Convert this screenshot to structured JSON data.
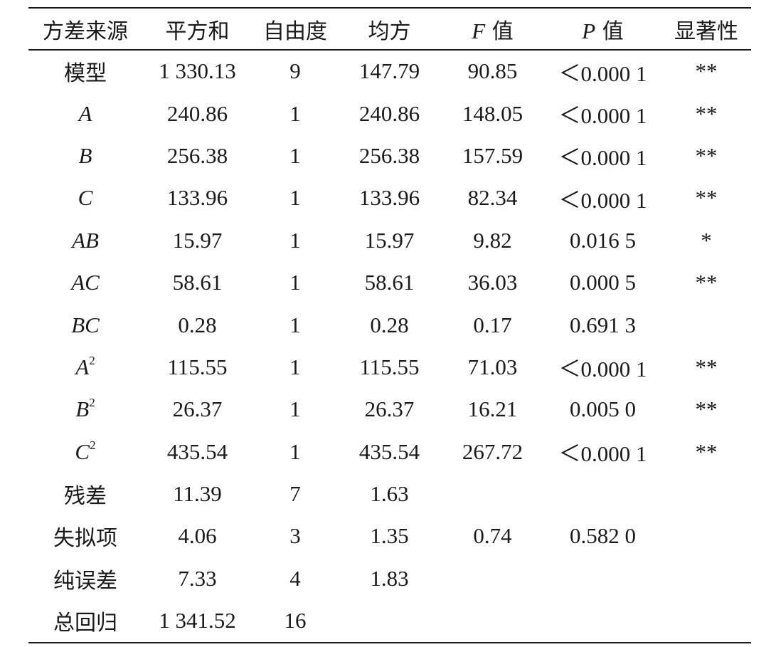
{
  "table": {
    "headers": {
      "source": "方差来源",
      "sum_of_squares": "平方和",
      "df": "自由度",
      "mean_square": "均方",
      "f_value_letter": "F",
      "f_value_suffix": "值",
      "p_value_letter": "P",
      "p_value_suffix": "值",
      "significance": "显著性"
    },
    "rows": [
      {
        "source": "模型",
        "source_italic": false,
        "source_sup": "",
        "ss": "1 330.13",
        "df": "9",
        "ms": "147.79",
        "f": "90.85",
        "p": "＜0.000 1",
        "sig": "**"
      },
      {
        "source": "A",
        "source_italic": true,
        "source_sup": "",
        "ss": "240.86",
        "df": "1",
        "ms": "240.86",
        "f": "148.05",
        "p": "＜0.000 1",
        "sig": "**"
      },
      {
        "source": "B",
        "source_italic": true,
        "source_sup": "",
        "ss": "256.38",
        "df": "1",
        "ms": "256.38",
        "f": "157.59",
        "p": "＜0.000 1",
        "sig": "**"
      },
      {
        "source": "C",
        "source_italic": true,
        "source_sup": "",
        "ss": "133.96",
        "df": "1",
        "ms": "133.96",
        "f": "82.34",
        "p": "＜0.000 1",
        "sig": "**"
      },
      {
        "source": "AB",
        "source_italic": true,
        "source_sup": "",
        "ss": "15.97",
        "df": "1",
        "ms": "15.97",
        "f": "9.82",
        "p": "0.016 5",
        "sig": "*"
      },
      {
        "source": "AC",
        "source_italic": true,
        "source_sup": "",
        "ss": "58.61",
        "df": "1",
        "ms": "58.61",
        "f": "36.03",
        "p": "0.000 5",
        "sig": "**"
      },
      {
        "source": "BC",
        "source_italic": true,
        "source_sup": "",
        "ss": "0.28",
        "df": "1",
        "ms": "0.28",
        "f": "0.17",
        "p": "0.691 3",
        "sig": ""
      },
      {
        "source": "A",
        "source_italic": true,
        "source_sup": "2",
        "ss": "115.55",
        "df": "1",
        "ms": "115.55",
        "f": "71.03",
        "p": "＜0.000 1",
        "sig": "**"
      },
      {
        "source": "B",
        "source_italic": true,
        "source_sup": "2",
        "ss": "26.37",
        "df": "1",
        "ms": "26.37",
        "f": "16.21",
        "p": "0.005 0",
        "sig": "**"
      },
      {
        "source": "C",
        "source_italic": true,
        "source_sup": "2",
        "ss": "435.54",
        "df": "1",
        "ms": "435.54",
        "f": "267.72",
        "p": "＜0.000 1",
        "sig": "**"
      },
      {
        "source": "残差",
        "source_italic": false,
        "source_sup": "",
        "ss": "11.39",
        "df": "7",
        "ms": "1.63",
        "f": "",
        "p": "",
        "sig": ""
      },
      {
        "source": "失拟项",
        "source_italic": false,
        "source_sup": "",
        "ss": "4.06",
        "df": "3",
        "ms": "1.35",
        "f": "0.74",
        "p": "0.582 0",
        "sig": ""
      },
      {
        "source": "纯误差",
        "source_italic": false,
        "source_sup": "",
        "ss": "7.33",
        "df": "4",
        "ms": "1.83",
        "f": "",
        "p": "",
        "sig": ""
      },
      {
        "source": "总回归",
        "source_italic": false,
        "source_sup": "",
        "ss": "1 341.52",
        "df": "16",
        "ms": "",
        "f": "",
        "p": "",
        "sig": ""
      }
    ]
  }
}
